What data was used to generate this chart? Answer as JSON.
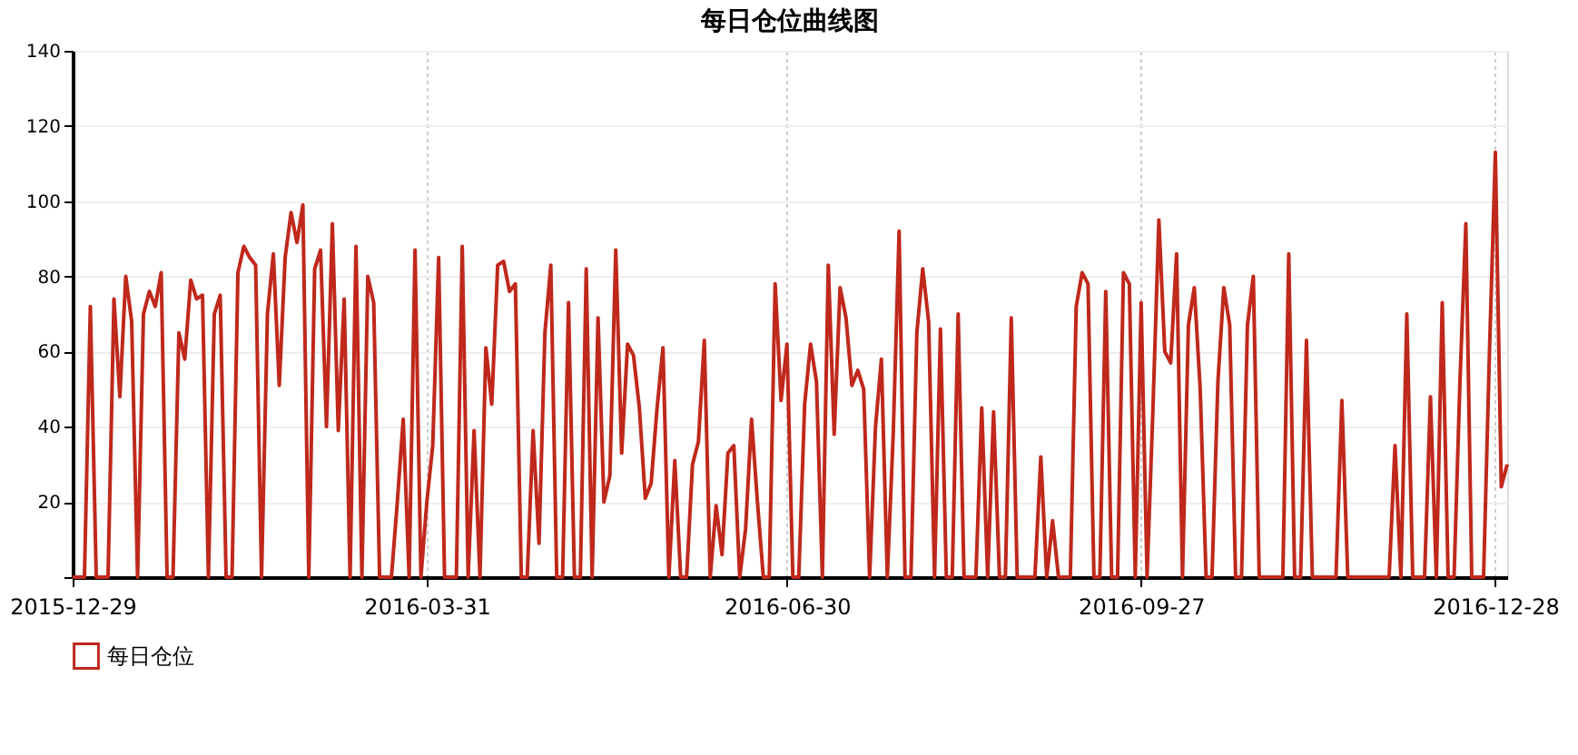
{
  "chart_data": {
    "type": "line",
    "title": "每日仓位曲线图",
    "categories": [
      "2015-12-29",
      null,
      null,
      null,
      null,
      null,
      null,
      null,
      null,
      null,
      null,
      null,
      null,
      null,
      null,
      null,
      null,
      null,
      null,
      null,
      null,
      null,
      null,
      null,
      null,
      null,
      null,
      null,
      null,
      null,
      null,
      null,
      null,
      null,
      null,
      null,
      null,
      null,
      null,
      null,
      null,
      null,
      null,
      null,
      null,
      null,
      null,
      null,
      null,
      null,
      null,
      null,
      null,
      null,
      null,
      null,
      null,
      null,
      null,
      null,
      "2016-03-31",
      null,
      null,
      null,
      null,
      null,
      null,
      null,
      null,
      null,
      null,
      null,
      null,
      null,
      null,
      null,
      null,
      null,
      null,
      null,
      null,
      null,
      null,
      null,
      null,
      null,
      null,
      null,
      null,
      null,
      null,
      null,
      null,
      null,
      null,
      null,
      null,
      null,
      null,
      null,
      null,
      null,
      null,
      null,
      null,
      null,
      null,
      null,
      null,
      null,
      null,
      null,
      null,
      null,
      null,
      null,
      null,
      null,
      null,
      null,
      null,
      "2016-06-30",
      null,
      null,
      null,
      null,
      null,
      null,
      null,
      null,
      null,
      null,
      null,
      null,
      null,
      null,
      null,
      null,
      null,
      null,
      null,
      null,
      null,
      null,
      null,
      null,
      null,
      null,
      null,
      null,
      null,
      null,
      null,
      null,
      null,
      null,
      null,
      null,
      null,
      null,
      null,
      null,
      null,
      null,
      null,
      null,
      null,
      null,
      null,
      null,
      null,
      null,
      null,
      null,
      null,
      null,
      null,
      null,
      null,
      null,
      null,
      "2016-09-27",
      null,
      null,
      null,
      null,
      null,
      null,
      null,
      null,
      null,
      null,
      null,
      null,
      null,
      null,
      null,
      null,
      null,
      null,
      null,
      null,
      null,
      null,
      null,
      null,
      null,
      null,
      null,
      null,
      null,
      null,
      null,
      null,
      null,
      null,
      null,
      null,
      null,
      null,
      null,
      null,
      null,
      null,
      null,
      null,
      null,
      null,
      null,
      null,
      null,
      null,
      null,
      null,
      null,
      null,
      null,
      null,
      null,
      null,
      null,
      "2016-12-28",
      null,
      null
    ],
    "series": [
      {
        "name": "每日仓位",
        "color": "#c0281c",
        "values": [
          0,
          0,
          0,
          72,
          0,
          0,
          0,
          74,
          48,
          80,
          68,
          0,
          70,
          76,
          72,
          81,
          0,
          0,
          65,
          58,
          79,
          74,
          75,
          0,
          70,
          75,
          0,
          0,
          81,
          88,
          85,
          83,
          0,
          70,
          86,
          51,
          85,
          97,
          89,
          99,
          0,
          82,
          87,
          40,
          94,
          39,
          74,
          0,
          88,
          0,
          80,
          73,
          0,
          0,
          0,
          20,
          42,
          0,
          87,
          0,
          20,
          35,
          85,
          0,
          0,
          0,
          88,
          0,
          39,
          0,
          61,
          46,
          83,
          84,
          76,
          78,
          0,
          0,
          39,
          9,
          65,
          83,
          0,
          0,
          73,
          0,
          0,
          82,
          0,
          69,
          20,
          27,
          87,
          33,
          62,
          59,
          45,
          21,
          25,
          45,
          61,
          0,
          31,
          0,
          0,
          30,
          36,
          63,
          0,
          19,
          6,
          33,
          35,
          0,
          13,
          42,
          20,
          0,
          0,
          78,
          47,
          62,
          0,
          0,
          46,
          62,
          52,
          0,
          83,
          38,
          77,
          69,
          51,
          55,
          50,
          0,
          40,
          58,
          0,
          38,
          92,
          0,
          0,
          65,
          82,
          68,
          0,
          66,
          0,
          0,
          70,
          0,
          0,
          0,
          45,
          0,
          44,
          0,
          0,
          69,
          0,
          0,
          0,
          0,
          32,
          0,
          15,
          0,
          0,
          0,
          72,
          81,
          78,
          0,
          0,
          76,
          0,
          0,
          81,
          78,
          0,
          73,
          0,
          45,
          95,
          60,
          57,
          86,
          0,
          67,
          77,
          50,
          0,
          0,
          52,
          77,
          67,
          0,
          0,
          67,
          80,
          0,
          0,
          0,
          0,
          0,
          86,
          0,
          0,
          63,
          0,
          0,
          0,
          0,
          0,
          47,
          0,
          0,
          0,
          0,
          0,
          0,
          0,
          0,
          35,
          0,
          70,
          0,
          0,
          0,
          48,
          0,
          73,
          0,
          0,
          52,
          94,
          0,
          0,
          0,
          60,
          113,
          24,
          30
        ]
      }
    ],
    "ylim": [
      0,
      140
    ],
    "yticks": [
      {
        "value": 0,
        "label": null
      },
      20,
      40,
      60,
      80,
      100,
      120,
      140
    ],
    "grid": true,
    "legend": "bottom left",
    "marker": "none",
    "line_style": "solid"
  }
}
